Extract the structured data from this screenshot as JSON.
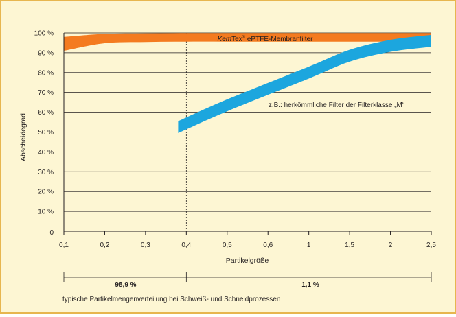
{
  "colors": {
    "background": "#fdf6d3",
    "frame": "#e7b64f",
    "kemtex_band": "#f47b20",
    "conventional_band": "#1ca6de",
    "axis": "#231f20"
  },
  "chart_data": {
    "type": "line",
    "ylabel": "Abscheidegrad",
    "xlabel": "Partikelgröße",
    "x_ticks": [
      "0,1",
      "0,2",
      "0,3",
      "0,4",
      "0,5",
      "0,6",
      "1",
      "1,5",
      "2",
      "2,5"
    ],
    "y_ticks": [
      "0",
      "10 %",
      "20 %",
      "30 %",
      "40 %",
      "50 %",
      "60 %",
      "70 %",
      "80 %",
      "90 %",
      "100 %"
    ],
    "ylim": [
      0,
      100
    ],
    "grid": "horizontal",
    "series": [
      {
        "name_italic": "Kem",
        "name_rest": "Tex",
        "name_reg": "®",
        "name_suffix": " ePTFE-Membranfilter",
        "style": "band",
        "color": "#f47b20",
        "x": [
          "0,1",
          "0,2",
          "0,3",
          "0,4",
          "0,5",
          "0,6",
          "1",
          "1,5",
          "2",
          "2,5"
        ],
        "upper": [
          98.0,
          99.5,
          99.8,
          99.9,
          99.9,
          99.9,
          99.9,
          99.9,
          99.9,
          99.9
        ],
        "lower": [
          91.0,
          94.8,
          95.4,
          95.6,
          95.6,
          95.6,
          95.6,
          95.6,
          95.6,
          95.6
        ]
      },
      {
        "name": "z.B.: herkömmliche Filter der Filterklasse „M“",
        "style": "band",
        "color": "#1ca6de",
        "x_points": [
          0.38,
          0.5,
          1.0,
          1.5,
          2.0,
          2.5
        ],
        "center": [
          52.5,
          63.5,
          80.0,
          88.5,
          93.5,
          96.0
        ],
        "half_width": 3.0
      }
    ],
    "divider_x": "0,4",
    "distribution": {
      "left_value": "98,9 %",
      "right_value": "1,1 %",
      "caption": "typische Partikelmengenverteilung bei Schweiß- und Schneidprozessen"
    }
  }
}
